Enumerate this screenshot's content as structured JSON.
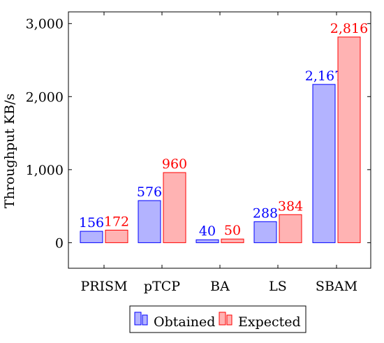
{
  "chart_data": {
    "type": "bar",
    "categories": [
      "PRISM",
      "pTCP",
      "BA",
      "LS",
      "SBAM"
    ],
    "series": [
      {
        "name": "Obtained",
        "values": [
          156,
          576,
          40,
          288,
          2167
        ],
        "labels": [
          "156",
          "576",
          "40",
          "288",
          "2,167"
        ],
        "fill": "#b3b3ff",
        "stroke": "#0000ff"
      },
      {
        "name": "Expected",
        "values": [
          172,
          960,
          50,
          384,
          2816
        ],
        "labels": [
          "172",
          "960",
          "50",
          "384",
          "2,816"
        ],
        "fill": "#ffb3b3",
        "stroke": "#ff0000"
      }
    ],
    "title": "",
    "xlabel": "",
    "ylabel": "Throughput KB/s",
    "ylim": [
      -350,
      3160
    ],
    "yticks": [
      0,
      1000,
      2000,
      3000
    ],
    "ytick_labels": [
      "0",
      "1,000",
      "2,000",
      "3,000"
    ],
    "grid": false,
    "legend_position": "bottom-center"
  }
}
